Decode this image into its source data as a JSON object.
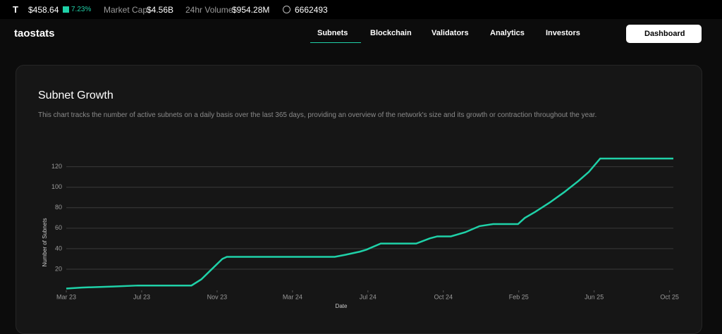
{
  "ticker": {
    "symbol": "T",
    "price": "$458.64",
    "change": "7.23%",
    "market_cap_label": "Market Cap",
    "market_cap": "$4.56B",
    "volume_label": "24hr Volume",
    "volume": "$954.28M",
    "block": "6662493"
  },
  "nav": {
    "logo": "taostats",
    "items": [
      "Subnets",
      "Blockchain",
      "Validators",
      "Analytics",
      "Investors"
    ],
    "dashboard": "Dashboard"
  },
  "chart_data": {
    "type": "line",
    "title": "Subnet Growth",
    "subtitle": "This chart tracks the number of active subnets on a daily basis over the last 365 days, providing an overview of the network's size and its growth or contraction throughout the year.",
    "xlabel": "Date",
    "ylabel": "Number of Subnets",
    "color": "#1fd1a8",
    "x": [
      0,
      0.2,
      0.62,
      0.95,
      1.66,
      1.79,
      1.93,
      2.07,
      2.13,
      3.56,
      3.7,
      3.89,
      3.98,
      4.17,
      4.64,
      4.82,
      4.92,
      5.1,
      5.29,
      5.48,
      5.66,
      5.99,
      6.08,
      6.22,
      6.41,
      6.6,
      6.79,
      6.93,
      7.08,
      8.05
    ],
    "values": [
      1,
      2,
      3,
      4,
      4,
      10,
      20,
      30,
      32,
      32,
      34,
      37,
      39,
      45,
      45,
      50,
      52,
      52,
      56,
      62,
      64,
      64,
      70,
      76,
      85,
      95,
      106,
      115,
      128,
      128
    ],
    "xlim": [
      0,
      8.05
    ],
    "ylim": [
      0,
      128
    ],
    "xticks": [
      {
        "value": 0,
        "label": "Mar 23"
      },
      {
        "value": 1,
        "label": "Jul 23"
      },
      {
        "value": 2,
        "label": "Nov 23"
      },
      {
        "value": 3,
        "label": "Mar 24"
      },
      {
        "value": 4,
        "label": "Jul 24"
      },
      {
        "value": 5,
        "label": "Oct 24"
      },
      {
        "value": 6,
        "label": "Feb 25"
      },
      {
        "value": 7,
        "label": "Jun 25"
      },
      {
        "value": 8,
        "label": "Oct 25"
      }
    ],
    "yticks": [
      20,
      40,
      60,
      80,
      100,
      120
    ],
    "grid": true
  }
}
